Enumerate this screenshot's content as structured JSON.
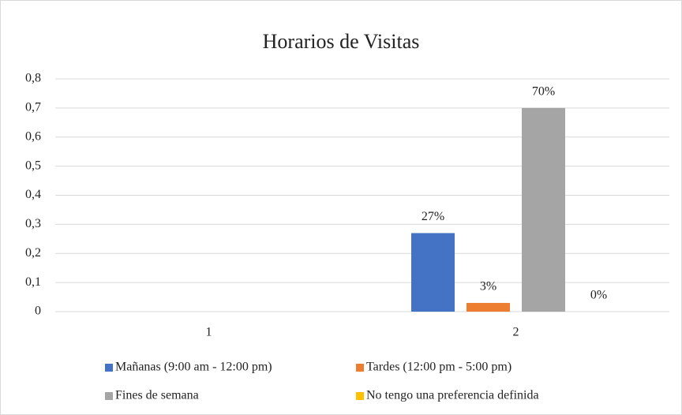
{
  "chart_data": {
    "type": "bar",
    "title": "Horarios  de Visitas",
    "categories": [
      "1",
      "2"
    ],
    "series": [
      {
        "name": "Mañanas (9:00 am - 12:00 pm)",
        "color": "#4472c4",
        "values": [
          null,
          0.27
        ],
        "value_labels": [
          null,
          "27%"
        ]
      },
      {
        "name": "Tardes (12:00 pm - 5:00 pm)",
        "color": "#ed7d31",
        "values": [
          null,
          0.03
        ],
        "value_labels": [
          null,
          "3%"
        ]
      },
      {
        "name": "Fines de semana",
        "color": "#a5a5a5",
        "values": [
          null,
          0.7
        ],
        "value_labels": [
          null,
          "70%"
        ]
      },
      {
        "name": "No tengo una preferencia definida",
        "color": "#ffc000",
        "values": [
          null,
          0
        ],
        "value_labels": [
          null,
          "0%"
        ]
      }
    ],
    "ylim": [
      0,
      0.8
    ],
    "yticks": [
      0,
      {
        "value": 0.1,
        "label": "0,1"
      },
      {
        "value": 0.2,
        "label": "0,2"
      },
      {
        "value": 0.3,
        "label": "0,3"
      },
      {
        "value": 0.4,
        "label": "0,4"
      },
      {
        "value": 0.5,
        "label": "0,5"
      },
      {
        "value": 0.6,
        "label": "0,6"
      },
      {
        "value": 0.7,
        "label": "0,7"
      },
      {
        "value": 0.8,
        "label": "0,8"
      }
    ],
    "grid": true,
    "legend": "bottom"
  }
}
